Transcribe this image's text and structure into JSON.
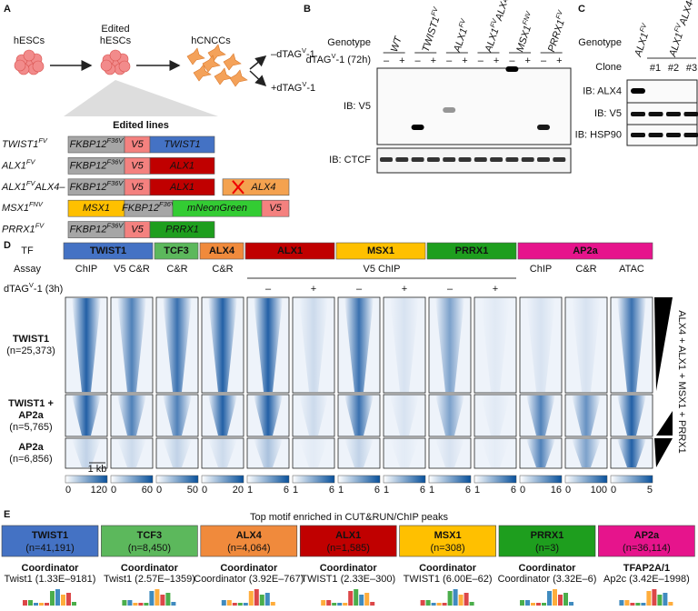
{
  "panel_labels": [
    "A",
    "B",
    "C",
    "D",
    "E"
  ],
  "a": {
    "cells": [
      [
        "hESCs"
      ],
      [
        "Edited",
        "hESCs"
      ],
      [
        "hCNCCs"
      ]
    ],
    "treatments": [
      [
        "–dTAG",
        {
          "sup": "V"
        },
        "-1"
      ],
      [
        "+dTAG",
        {
          "sup": "V"
        },
        "-1"
      ]
    ],
    "lines_title": "Edited lines",
    "lines": [
      {
        "name": [
          "TWIST1",
          {
            "sup": "FV"
          }
        ],
        "parts": [
          {
            "label": [
              "FKBP12",
              {
                "sup": "F36V"
              }
            ],
            "color": "#a6a6a6"
          },
          {
            "label": [
              "V5"
            ],
            "color": "#f4817f"
          },
          {
            "label": [
              "TWIST1"
            ],
            "color": "#4472c4"
          }
        ]
      },
      {
        "name": [
          "ALX1",
          {
            "sup": "FV"
          }
        ],
        "parts": [
          {
            "label": [
              "FKBP12",
              {
                "sup": "F36V"
              }
            ],
            "color": "#a6a6a6"
          },
          {
            "label": [
              "V5"
            ],
            "color": "#f4817f"
          },
          {
            "label": [
              "ALX1"
            ],
            "color": "#c00000"
          }
        ]
      },
      {
        "name": [
          "ALX1",
          {
            "sup": "FV"
          },
          "ALX4–"
        ],
        "parts": [
          {
            "label": [
              "FKBP12",
              {
                "sup": "F36V"
              }
            ],
            "color": "#a6a6a6"
          },
          {
            "label": [
              "V5"
            ],
            "color": "#f4817f"
          },
          {
            "label": [
              "ALX1"
            ],
            "color": "#c00000"
          }
        ],
        "deleted": {
          "label": [
            "ALX4"
          ],
          "color": "#f4a24f"
        }
      },
      {
        "name": [
          "MSX1",
          {
            "sup": "FNV"
          }
        ],
        "parts": [
          {
            "label": [
              "MSX1"
            ],
            "color": "#ffc000"
          },
          {
            "label": [
              "FKBP12",
              {
                "sup": "F36V"
              }
            ],
            "color": "#a6a6a6"
          },
          {
            "label": [
              "mNeonGreen"
            ],
            "color": "#33cc33"
          },
          {
            "label": [
              "V5"
            ],
            "color": "#f4817f"
          }
        ]
      },
      {
        "name": [
          "PRRX1",
          {
            "sup": "FV"
          }
        ],
        "parts": [
          {
            "label": [
              "FKBP12",
              {
                "sup": "F36V"
              }
            ],
            "color": "#a6a6a6"
          },
          {
            "label": [
              "V5"
            ],
            "color": "#f4817f"
          },
          {
            "label": [
              "PRRX1"
            ],
            "color": "#1e9e1e"
          }
        ]
      }
    ]
  },
  "b": {
    "genotype_label": "Genotype",
    "treatment_label": [
      "dTAG",
      {
        "sup": "V"
      },
      "-1 (72h)"
    ],
    "genotypes": [
      [
        "WT"
      ],
      [
        "TWIST1",
        {
          "sup": "FV"
        }
      ],
      [
        "ALX1",
        {
          "sup": "FV"
        }
      ],
      [
        "ALX1",
        {
          "sup": "FV"
        },
        "ALX4–"
      ],
      [
        "MSX1",
        {
          "sup": "FNV"
        }
      ],
      [
        "PRRX1",
        {
          "sup": "FV"
        }
      ]
    ],
    "signs": [
      "–",
      "+"
    ],
    "blots": [
      "IB: V5",
      "IB: CTCF"
    ]
  },
  "c": {
    "genotype_label": "Genotype",
    "genotypes": [
      [
        "ALX1",
        {
          "sup": "FV"
        }
      ],
      [
        "ALX1",
        {
          "sup": "FV"
        },
        "ALX4–"
      ]
    ],
    "clone_label": "Clone",
    "clones": [
      "#1",
      "#2",
      "#3"
    ],
    "blots": [
      "IB: ALX4",
      "IB: V5",
      "IB: HSP90"
    ]
  },
  "d": {
    "tf_label": "TF",
    "tfs": [
      {
        "name": "TWIST1",
        "color": "#4472c4"
      },
      {
        "name": "TCF3",
        "color": "#5cb85c"
      },
      {
        "name": "ALX4",
        "color": "#f08a3c"
      },
      {
        "name": "ALX1",
        "color": "#c00000"
      },
      {
        "name": "MSX1",
        "color": "#ffc000"
      },
      {
        "name": "PRRX1",
        "color": "#1e9e1e"
      },
      {
        "name": "AP2a",
        "color": "#e6148c"
      }
    ],
    "assay_label": "Assay",
    "assays": [
      "ChIP",
      "V5 C&R",
      "C&R",
      "C&R",
      "V5 ChIP",
      "ChIP",
      "C&R",
      "ATAC"
    ],
    "treatment_label": [
      "dTAG",
      {
        "sup": "V"
      },
      "-1 (3h)"
    ],
    "signs": [
      "–",
      "+",
      "–",
      "+",
      "–",
      "+"
    ],
    "clusters": [
      [
        "TWIST1",
        "(n=25,373)"
      ],
      [
        "TWIST1 +",
        "AP2a",
        "(n=5,765)"
      ],
      [
        "AP2a",
        "(n=6,856)"
      ]
    ],
    "scale_label": "1 kb",
    "side_label": "ALX4 + ALX1 + MSX1 + PRRX1",
    "colorbars": [
      [
        0,
        120
      ],
      [
        0,
        60
      ],
      [
        0,
        50
      ],
      [
        0,
        20
      ],
      [
        1,
        6
      ],
      [
        1,
        6
      ],
      [
        1,
        6
      ],
      [
        1,
        6
      ],
      [
        1,
        6
      ],
      [
        1,
        6
      ],
      [
        0,
        16
      ],
      [
        0,
        100
      ],
      [
        0,
        5
      ]
    ]
  },
  "e": {
    "title": "Top motif enriched in CUT&RUN/ChIP peaks",
    "motifs": [
      {
        "tf": "TWIST1",
        "n": "(n=41,191)",
        "color": "#4472c4",
        "family": "Coordinator",
        "match": "Twist1 (1.33E–9181)"
      },
      {
        "tf": "TCF3",
        "n": "(n=8,450)",
        "color": "#5cb85c",
        "family": "Coordinator",
        "match": "Twist1 (2.57E–1359)"
      },
      {
        "tf": "ALX4",
        "n": "(n=4,064)",
        "color": "#f08a3c",
        "family": "Coordinator",
        "match": "Coordinator (3.92E–767)"
      },
      {
        "tf": "ALX1",
        "n": "(n=1,585)",
        "color": "#c00000",
        "family": "Coordinator",
        "match": "TWIST1 (2.33E–300)"
      },
      {
        "tf": "MSX1",
        "n": "(n=308)",
        "color": "#ffc000",
        "family": "Coordinator",
        "match": "TWIST1 (6.00E–62)"
      },
      {
        "tf": "PRRX1",
        "n": "(n=3)",
        "color": "#1e9e1e",
        "family": "Coordinator",
        "match": "Coordinator (3.32E–6)"
      },
      {
        "tf": "AP2a",
        "n": "(n=36,114)",
        "color": "#e6148c",
        "family": "TFAP2A/1",
        "match": "Ap2c (3.42E–1998)"
      }
    ]
  }
}
